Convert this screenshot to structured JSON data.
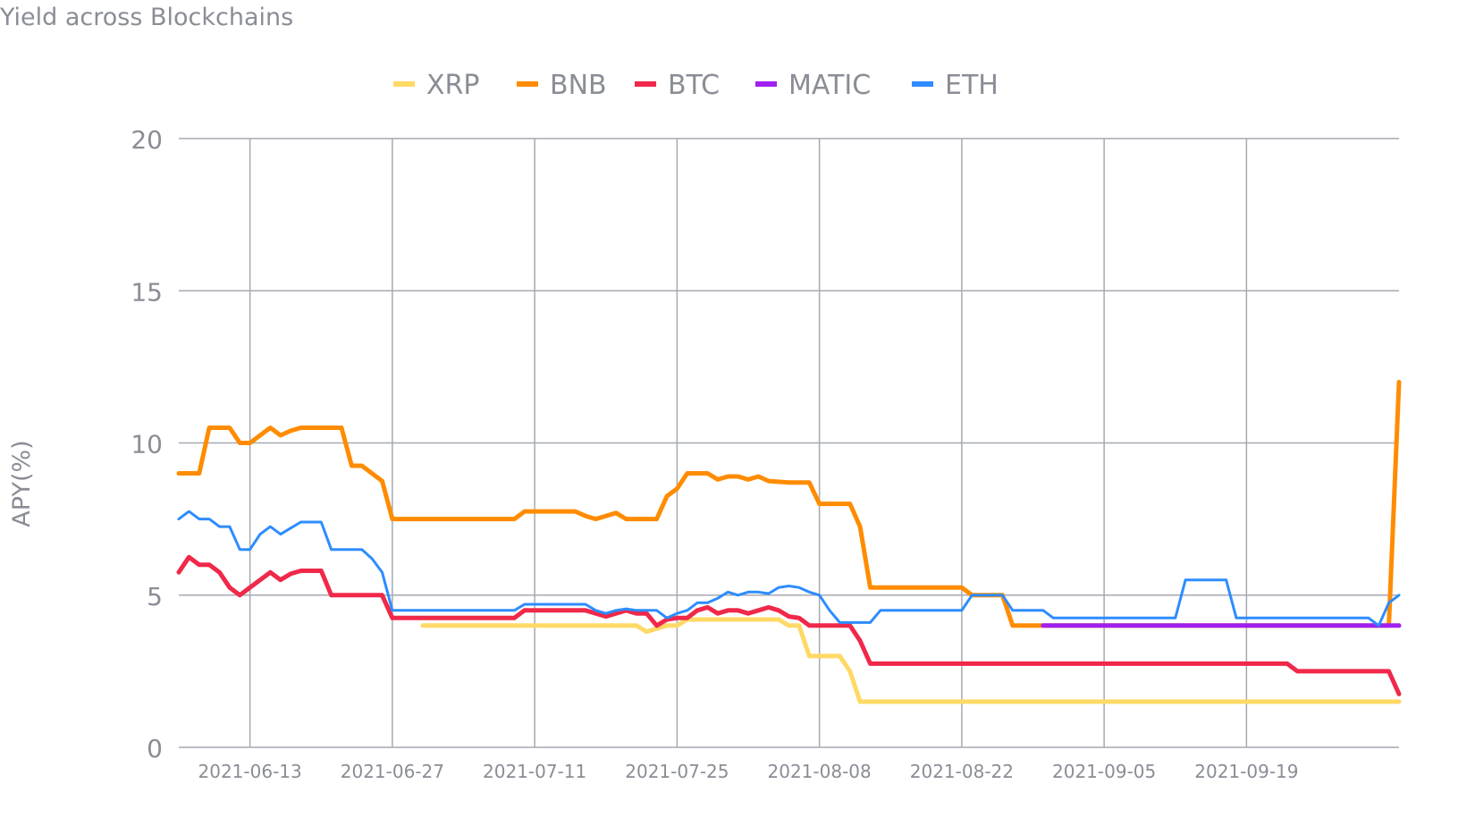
{
  "chart_data": {
    "type": "line",
    "title": "Yield across Blockchains",
    "xlabel": "",
    "ylabel": "APY(%)",
    "ylim": [
      0,
      20
    ],
    "xlim": [
      "2021-06-06",
      "2021-10-04"
    ],
    "yticks": [
      "0",
      "5",
      "10",
      "15",
      "20"
    ],
    "xticks": [
      "2021-06-13",
      "2021-06-27",
      "2021-07-11",
      "2021-07-25",
      "2021-08-08",
      "2021-08-22",
      "2021-09-05",
      "2021-09-19"
    ],
    "grid": true,
    "legend": "top-center",
    "series": [
      {
        "name": "XRP",
        "color": "#FFD966",
        "points": [
          [
            "2021-06-30",
            4.0
          ],
          [
            "2021-07-21",
            4.0
          ],
          [
            "2021-07-22",
            3.8
          ],
          [
            "2021-07-23",
            3.9
          ],
          [
            "2021-07-24",
            4.0
          ],
          [
            "2021-07-25",
            4.0
          ],
          [
            "2021-07-26",
            4.2
          ],
          [
            "2021-08-04",
            4.2
          ],
          [
            "2021-08-05",
            4.0
          ],
          [
            "2021-08-06",
            4.0
          ],
          [
            "2021-08-07",
            3.0
          ],
          [
            "2021-08-10",
            3.0
          ],
          [
            "2021-08-11",
            2.5
          ],
          [
            "2021-08-12",
            1.5
          ],
          [
            "2021-10-04",
            1.5
          ]
        ]
      },
      {
        "name": "BNB",
        "color": "#FF8C00",
        "points": [
          [
            "2021-06-06",
            9.0
          ],
          [
            "2021-06-08",
            9.0
          ],
          [
            "2021-06-09",
            10.5
          ],
          [
            "2021-06-11",
            10.5
          ],
          [
            "2021-06-12",
            10.0
          ],
          [
            "2021-06-13",
            10.0
          ],
          [
            "2021-06-15",
            10.5
          ],
          [
            "2021-06-16",
            10.25
          ],
          [
            "2021-06-17",
            10.4
          ],
          [
            "2021-06-18",
            10.5
          ],
          [
            "2021-06-22",
            10.5
          ],
          [
            "2021-06-23",
            9.25
          ],
          [
            "2021-06-24",
            9.25
          ],
          [
            "2021-06-26",
            8.75
          ],
          [
            "2021-06-27",
            7.5
          ],
          [
            "2021-07-09",
            7.5
          ],
          [
            "2021-07-10",
            7.75
          ],
          [
            "2021-07-15",
            7.75
          ],
          [
            "2021-07-16",
            7.6
          ],
          [
            "2021-07-17",
            7.5
          ],
          [
            "2021-07-19",
            7.7
          ],
          [
            "2021-07-20",
            7.5
          ],
          [
            "2021-07-23",
            7.5
          ],
          [
            "2021-07-24",
            8.25
          ],
          [
            "2021-07-25",
            8.5
          ],
          [
            "2021-07-26",
            9.0
          ],
          [
            "2021-07-28",
            9.0
          ],
          [
            "2021-07-29",
            8.8
          ],
          [
            "2021-07-30",
            8.9
          ],
          [
            "2021-07-31",
            8.9
          ],
          [
            "2021-08-01",
            8.8
          ],
          [
            "2021-08-02",
            8.9
          ],
          [
            "2021-08-03",
            8.75
          ],
          [
            "2021-08-05",
            8.7
          ],
          [
            "2021-08-07",
            8.7
          ],
          [
            "2021-08-08",
            8.0
          ],
          [
            "2021-08-11",
            8.0
          ],
          [
            "2021-08-12",
            7.25
          ],
          [
            "2021-08-13",
            5.25
          ],
          [
            "2021-08-22",
            5.25
          ],
          [
            "2021-08-23",
            5.0
          ],
          [
            "2021-08-26",
            5.0
          ],
          [
            "2021-08-27",
            4.0
          ],
          [
            "2021-08-30",
            4.0
          ],
          [
            "2021-10-03",
            4.0
          ],
          [
            "2021-10-04",
            12.0
          ]
        ]
      },
      {
        "name": "BTC",
        "color": "#F0284A",
        "points": [
          [
            "2021-06-06",
            5.75
          ],
          [
            "2021-06-07",
            6.25
          ],
          [
            "2021-06-08",
            6.0
          ],
          [
            "2021-06-09",
            6.0
          ],
          [
            "2021-06-10",
            5.75
          ],
          [
            "2021-06-11",
            5.25
          ],
          [
            "2021-06-12",
            5.0
          ],
          [
            "2021-06-13",
            5.25
          ],
          [
            "2021-06-15",
            5.75
          ],
          [
            "2021-06-16",
            5.5
          ],
          [
            "2021-06-17",
            5.7
          ],
          [
            "2021-06-18",
            5.8
          ],
          [
            "2021-06-20",
            5.8
          ],
          [
            "2021-06-21",
            5.0
          ],
          [
            "2021-06-26",
            5.0
          ],
          [
            "2021-06-27",
            4.25
          ],
          [
            "2021-07-09",
            4.25
          ],
          [
            "2021-07-10",
            4.5
          ],
          [
            "2021-07-16",
            4.5
          ],
          [
            "2021-07-17",
            4.4
          ],
          [
            "2021-07-18",
            4.3
          ],
          [
            "2021-07-19",
            4.4
          ],
          [
            "2021-07-20",
            4.5
          ],
          [
            "2021-07-21",
            4.4
          ],
          [
            "2021-07-22",
            4.4
          ],
          [
            "2021-07-23",
            4.0
          ],
          [
            "2021-07-24",
            4.2
          ],
          [
            "2021-07-25",
            4.25
          ],
          [
            "2021-07-26",
            4.25
          ],
          [
            "2021-07-27",
            4.5
          ],
          [
            "2021-07-28",
            4.6
          ],
          [
            "2021-07-29",
            4.4
          ],
          [
            "2021-07-30",
            4.5
          ],
          [
            "2021-07-31",
            4.5
          ],
          [
            "2021-08-01",
            4.4
          ],
          [
            "2021-08-02",
            4.5
          ],
          [
            "2021-08-03",
            4.6
          ],
          [
            "2021-08-04",
            4.5
          ],
          [
            "2021-08-05",
            4.3
          ],
          [
            "2021-08-06",
            4.25
          ],
          [
            "2021-08-07",
            4.0
          ],
          [
            "2021-08-08",
            4.0
          ],
          [
            "2021-08-11",
            4.0
          ],
          [
            "2021-08-12",
            3.5
          ],
          [
            "2021-08-13",
            2.75
          ],
          [
            "2021-09-23",
            2.75
          ],
          [
            "2021-09-24",
            2.5
          ],
          [
            "2021-10-03",
            2.5
          ],
          [
            "2021-10-04",
            1.75
          ]
        ]
      },
      {
        "name": "MATIC",
        "color": "#A020F0",
        "points": [
          [
            "2021-08-30",
            4.0
          ],
          [
            "2021-10-04",
            4.0
          ]
        ]
      },
      {
        "name": "ETH",
        "color": "#2D8CFF",
        "points": [
          [
            "2021-06-06",
            7.5
          ],
          [
            "2021-06-07",
            7.75
          ],
          [
            "2021-06-08",
            7.5
          ],
          [
            "2021-06-09",
            7.5
          ],
          [
            "2021-06-10",
            7.25
          ],
          [
            "2021-06-11",
            7.25
          ],
          [
            "2021-06-12",
            6.5
          ],
          [
            "2021-06-13",
            6.5
          ],
          [
            "2021-06-14",
            7.0
          ],
          [
            "2021-06-15",
            7.25
          ],
          [
            "2021-06-16",
            7.0
          ],
          [
            "2021-06-17",
            7.2
          ],
          [
            "2021-06-18",
            7.4
          ],
          [
            "2021-06-20",
            7.4
          ],
          [
            "2021-06-21",
            6.5
          ],
          [
            "2021-06-24",
            6.5
          ],
          [
            "2021-06-25",
            6.2
          ],
          [
            "2021-06-26",
            5.75
          ],
          [
            "2021-06-27",
            4.5
          ],
          [
            "2021-07-09",
            4.5
          ],
          [
            "2021-07-10",
            4.7
          ],
          [
            "2021-07-16",
            4.7
          ],
          [
            "2021-07-17",
            4.5
          ],
          [
            "2021-07-18",
            4.4
          ],
          [
            "2021-07-19",
            4.5
          ],
          [
            "2021-07-20",
            4.55
          ],
          [
            "2021-07-21",
            4.5
          ],
          [
            "2021-07-23",
            4.5
          ],
          [
            "2021-07-24",
            4.25
          ],
          [
            "2021-07-25",
            4.4
          ],
          [
            "2021-07-26",
            4.5
          ],
          [
            "2021-07-27",
            4.75
          ],
          [
            "2021-07-28",
            4.75
          ],
          [
            "2021-07-29",
            4.9
          ],
          [
            "2021-07-30",
            5.1
          ],
          [
            "2021-07-31",
            5.0
          ],
          [
            "2021-08-01",
            5.1
          ],
          [
            "2021-08-02",
            5.1
          ],
          [
            "2021-08-03",
            5.05
          ],
          [
            "2021-08-04",
            5.25
          ],
          [
            "2021-08-05",
            5.3
          ],
          [
            "2021-08-06",
            5.25
          ],
          [
            "2021-08-07",
            5.1
          ],
          [
            "2021-08-08",
            5.0
          ],
          [
            "2021-08-09",
            4.5
          ],
          [
            "2021-08-10",
            4.1
          ],
          [
            "2021-08-13",
            4.1
          ],
          [
            "2021-08-14",
            4.5
          ],
          [
            "2021-08-22",
            4.5
          ],
          [
            "2021-08-23",
            5.0
          ],
          [
            "2021-08-26",
            5.0
          ],
          [
            "2021-08-27",
            4.5
          ],
          [
            "2021-08-30",
            4.5
          ],
          [
            "2021-08-31",
            4.25
          ],
          [
            "2021-09-12",
            4.25
          ],
          [
            "2021-09-13",
            5.5
          ],
          [
            "2021-09-17",
            5.5
          ],
          [
            "2021-09-18",
            4.25
          ],
          [
            "2021-10-01",
            4.25
          ],
          [
            "2021-10-02",
            4.0
          ],
          [
            "2021-10-03",
            4.75
          ],
          [
            "2021-10-04",
            5.0
          ]
        ]
      }
    ]
  }
}
